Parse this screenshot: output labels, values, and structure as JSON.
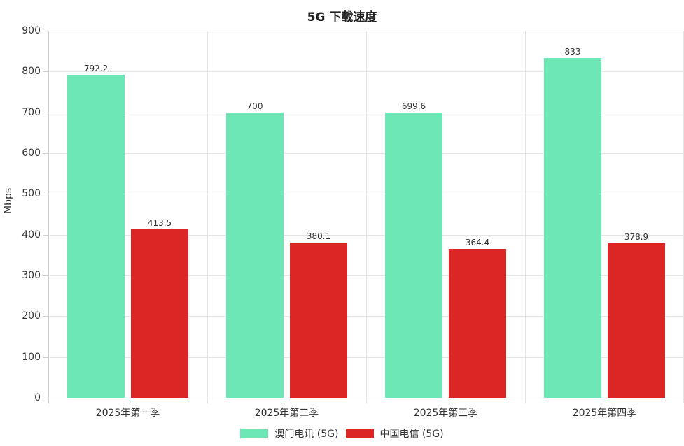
{
  "chart_data": {
    "type": "bar",
    "title": "5G 下载速度",
    "xlabel": "",
    "ylabel": "Mbps",
    "ylim": [
      0,
      900
    ],
    "yticks": [
      0,
      100,
      200,
      300,
      400,
      500,
      600,
      700,
      800,
      900
    ],
    "grid": true,
    "legend_position": "bottom",
    "categories": [
      "2025年第一季",
      "2025年第二季",
      "2025年第三季",
      "2025年第四季"
    ],
    "series": [
      {
        "name": "澳门电讯 (5G)",
        "color": "#6ee7b7",
        "values": [
          792.2,
          700,
          699.6,
          833
        ],
        "labels": [
          "792.2",
          "700",
          "699.6",
          "833"
        ]
      },
      {
        "name": "中国电信 (5G)",
        "color": "#dc2626",
        "values": [
          413.5,
          380.1,
          364.4,
          378.9
        ],
        "labels": [
          "413.5",
          "380.1",
          "364.4",
          "378.9"
        ]
      }
    ]
  }
}
